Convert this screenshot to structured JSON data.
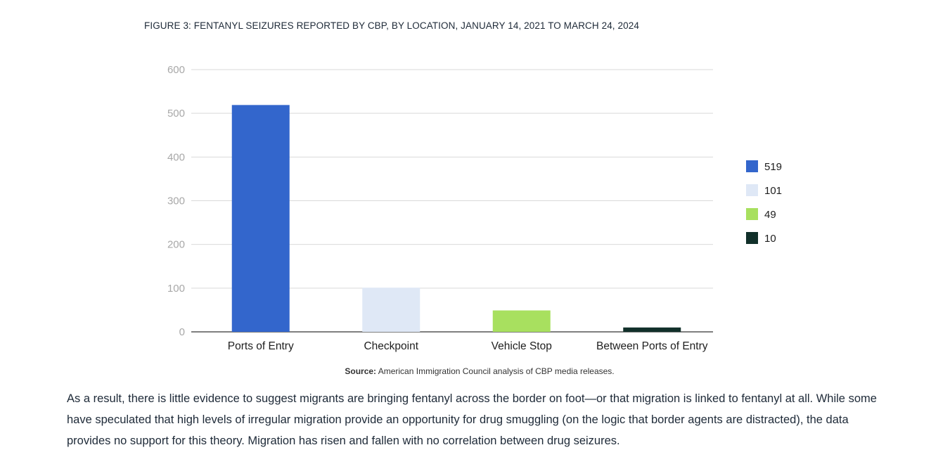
{
  "figure_title": "FIGURE 3: FENTANYL SEIZURES REPORTED BY CBP, BY LOCATION, JANUARY 14, 2021 TO MARCH 24, 2024",
  "chart_data": {
    "type": "bar",
    "title": "FIGURE 3: FENTANYL SEIZURES REPORTED BY CBP, BY LOCATION, JANUARY 14, 2021 TO MARCH 24, 2024",
    "categories": [
      "Ports of Entry",
      "Checkpoint",
      "Vehicle Stop",
      "Between Ports of Entry"
    ],
    "values": [
      519,
      101,
      49,
      10
    ],
    "colors": [
      "#3366cc",
      "#dfe8f6",
      "#a8e05f",
      "#11302a"
    ],
    "ylim": [
      0,
      600
    ],
    "yticks": [
      0,
      100,
      200,
      300,
      400,
      500,
      600
    ],
    "grid": true,
    "legend_position": "right",
    "legend": [
      "519",
      "101",
      "49",
      "10"
    ],
    "xlabel": "",
    "ylabel": ""
  },
  "source": {
    "label": "Source:",
    "text": "American Immigration Council analysis of CBP media releases."
  },
  "body_text": "As a result, there is little evidence to suggest migrants are bringing fentanyl across the border on foot—or that migration is linked to fentanyl at all. While some have speculated that high levels of irregular migration provide an opportunity for drug smuggling (on the logic that border agents are distracted), the data provides no support for this theory. Migration has risen and fallen with no correlation between drug seizures."
}
